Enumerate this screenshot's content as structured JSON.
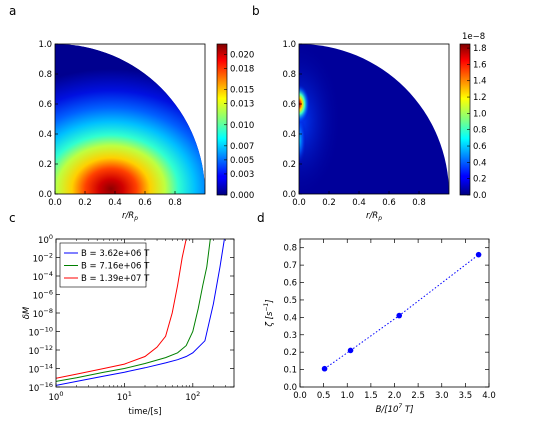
{
  "panels": {
    "a": {
      "label": "a"
    },
    "b": {
      "label": "b"
    },
    "c": {
      "label": "c"
    },
    "d": {
      "label": "d"
    }
  },
  "chart_data": [
    {
      "id": "a",
      "type": "heatmap",
      "xlabel": "r/R_p",
      "ylabel": "",
      "xlim": [
        0,
        1
      ],
      "ylim": [
        0,
        1
      ],
      "x_ticks": [
        "0.0",
        "0.2",
        "0.4",
        "0.6",
        "0.8"
      ],
      "y_ticks": [
        "0.0",
        "0.2",
        "0.4",
        "0.6",
        "0.8",
        "1.0"
      ],
      "colorbar": {
        "ticks": [
          "0.000",
          "0.003",
          "0.005",
          "0.007",
          "0.010",
          "0.013",
          "0.015",
          "0.018",
          "0.020"
        ],
        "min": 0,
        "max": 0.0215
      },
      "peak": {
        "x": 0.33,
        "y": 0.02,
        "value": 0.0215
      }
    },
    {
      "id": "b",
      "type": "heatmap",
      "xlabel": "r/R_p",
      "ylabel": "",
      "xlim": [
        0,
        1
      ],
      "ylim": [
        0,
        1
      ],
      "x_ticks": [
        "0.0",
        "0.2",
        "0.4",
        "0.6",
        "0.8"
      ],
      "y_ticks": [
        "0.0",
        "0.2",
        "0.4",
        "0.6",
        "0.8",
        "1.0"
      ],
      "colorbar": {
        "offset_text": "1e−8",
        "ticks": [
          "0.0",
          "0.2",
          "0.4",
          "0.6",
          "0.8",
          "1.0",
          "1.2",
          "1.4",
          "1.6",
          "1.8"
        ],
        "min": 0,
        "max": 1.85
      },
      "hotspots": [
        {
          "x": 0.0,
          "y": 0.6,
          "value": 1.85
        },
        {
          "x": 0.0,
          "y": 0.35,
          "value": 0.7
        }
      ]
    },
    {
      "id": "c",
      "type": "line",
      "xlabel": "time/[s]",
      "ylabel": "δM",
      "xscale": "log",
      "yscale": "log",
      "xlim": [
        1,
        400
      ],
      "ylim": [
        1e-16,
        1
      ],
      "x_ticks": [
        "10^0",
        "10^1",
        "10^2"
      ],
      "y_ticks": [
        "10^-16",
        "10^-14",
        "10^-12",
        "10^-10",
        "10^-8",
        "10^-6",
        "10^-4",
        "10^-2",
        "10^0"
      ],
      "legend": "top-left",
      "series": [
        {
          "name": "B = 3.62e+06 T",
          "color": "#0000ff",
          "x": [
            1,
            2,
            5,
            10,
            20,
            40,
            60,
            80,
            100,
            150,
            200,
            250,
            290
          ],
          "y": [
            1.5e-16,
            4e-16,
            1.5e-15,
            4e-15,
            1.2e-14,
            4e-14,
            9e-14,
            2e-13,
            5e-13,
            1e-11,
            1e-07,
            0.001,
            1
          ]
        },
        {
          "name": "B = 7.16e+06 T",
          "color": "#008000",
          "x": [
            1,
            2,
            5,
            10,
            20,
            40,
            60,
            80,
            100,
            120,
            140,
            160,
            180
          ],
          "y": [
            4e-16,
            1e-15,
            4e-15,
            1e-14,
            3.5e-14,
            1.5e-13,
            5e-13,
            3e-12,
            1e-10,
            3e-08,
            1e-05,
            0.001,
            1
          ]
        },
        {
          "name": "B = 1.39e+07 T",
          "color": "#ff0000",
          "x": [
            1,
            2,
            5,
            10,
            20,
            30,
            40,
            50,
            60,
            70,
            80
          ],
          "y": [
            9e-16,
            2.5e-15,
            1e-14,
            3e-14,
            2e-13,
            2e-12,
            3e-11,
            1e-08,
            1e-05,
            0.01,
            1
          ]
        }
      ]
    },
    {
      "id": "d",
      "type": "scatter",
      "xlabel": "B/[10^7 T]",
      "ylabel": "ζ [s^-1]",
      "xlim": [
        0,
        4
      ],
      "ylim": [
        0,
        0.85
      ],
      "x_ticks": [
        "0.0",
        "0.5",
        "1.0",
        "1.5",
        "2.0",
        "2.5",
        "3.0",
        "3.5",
        "4.0"
      ],
      "y_ticks": [
        "0.0",
        "0.1",
        "0.2",
        "0.3",
        "0.4",
        "0.5",
        "0.6",
        "0.7",
        "0.8"
      ],
      "series": [
        {
          "color": "#0000ff",
          "x": [
            0.52,
            1.07,
            2.1,
            3.78
          ],
          "y": [
            0.105,
            0.21,
            0.41,
            0.76
          ]
        }
      ]
    }
  ]
}
